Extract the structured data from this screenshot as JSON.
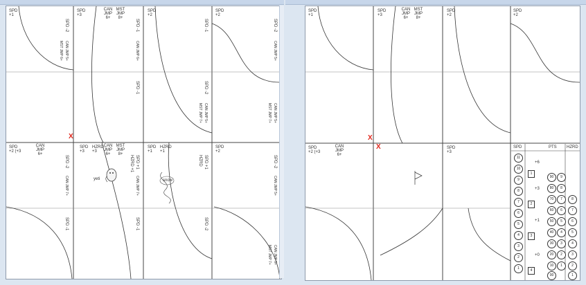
{
  "left_page": {
    "cells": [
      {
        "spd_top": "SPD\n+1",
        "labels_top": [],
        "right_v": [
          "SPD -2"
        ],
        "right_v2": [
          "CAN JMP 5+",
          "MST JMP 6+"
        ]
      },
      {
        "spd_top": "SPD\n+3",
        "labels_top": [
          "CAN JMP 6+",
          "MST JMP 8+"
        ],
        "right_v": [
          "SPD -1"
        ],
        "right_v2": [
          "CAN JMP 6+"
        ]
      },
      {
        "spd_top": "SPD\n+2",
        "labels_top": [],
        "right_v": [
          "SPD -1"
        ],
        "right_v2": []
      },
      {
        "spd_top": "SPD\n+2",
        "labels_top": [],
        "right_v": [
          "SPD -2"
        ],
        "right_v2": [
          "CAN JMP 5+"
        ]
      }
    ],
    "row2_right_labels": [
      "SPD -1",
      "SPD -2",
      "CAN JMP 5+",
      "MST JMP 7+",
      "CAN JMP 5+",
      "MST JMP 7+"
    ],
    "row3": [
      {
        "spd_top": "SPD\n+2 (+3",
        "labels_top": [
          "CAN JMP 6+"
        ],
        "right_v": [
          "SPD -2",
          "CAN JMP 7+"
        ]
      },
      {
        "spd_top": "SPD\n+3",
        "labels_top": [
          "HZRD +3",
          "CAN JMP 6+",
          "MST JMP 8+"
        ],
        "right_v": [
          "SPD +1",
          "HZRD +1",
          "CAN JMP 7+"
        ]
      },
      {
        "spd_top": "SPD\n+1",
        "labels_top": [
          "HZRD +1"
        ],
        "right_v": [
          "SPD +1",
          "HZRD"
        ]
      },
      {
        "spd_top": "SPD\n+2",
        "labels_top": [],
        "right_v": [
          "SPD -2",
          "CAN JMP 5+"
        ]
      }
    ],
    "row4_right_labels": [
      "SPD -1",
      "SPD -2",
      "SPD -1",
      "CAN JMP 5+",
      "MST JMP 7+"
    ],
    "stickers": {
      "yeti": "yeti",
      "snow": "snow"
    }
  },
  "right_page": {
    "top_labels": [
      "SPD\n+1",
      "SPD\n+3",
      "CAN JMP 6+",
      "MST JMP 8+",
      "SPD\n+2",
      "SPD\n+2"
    ],
    "row3_labels": [
      "SPD\n+2 (+3",
      "CAN JMP 6+",
      "SPD\n+3"
    ],
    "scorecard": {
      "headers": [
        "SPD",
        "PTS",
        "HZRD"
      ],
      "spd_values": [
        "11",
        "10",
        "9",
        "8",
        "7",
        "6",
        "5",
        "4",
        "3",
        "2",
        "1"
      ],
      "pts_values": [
        "90",
        "80",
        "70",
        "60",
        "50",
        "40",
        "30",
        "20",
        "10",
        "00"
      ],
      "hzrd_values": [
        "8",
        "7",
        "6",
        "5",
        "4",
        "3",
        "2",
        "1"
      ],
      "flag_labels": [
        "+6",
        "+3",
        "+1",
        "+0"
      ],
      "box_labels": [
        "1",
        "2",
        "3",
        "4"
      ],
      "pts_left_labels": [
        "9",
        "8",
        "7",
        "6",
        "5",
        "4",
        "3",
        "2",
        "1"
      ]
    }
  },
  "colors": {
    "background": "#dce6f1",
    "page": "#ffffff",
    "line": "#444444",
    "x_mark": "#e0261b"
  },
  "icons": [
    "x-mark-icon",
    "flag-icon",
    "yeti-sticker-icon",
    "snow-sticker-icon"
  ],
  "x_mark": "X"
}
